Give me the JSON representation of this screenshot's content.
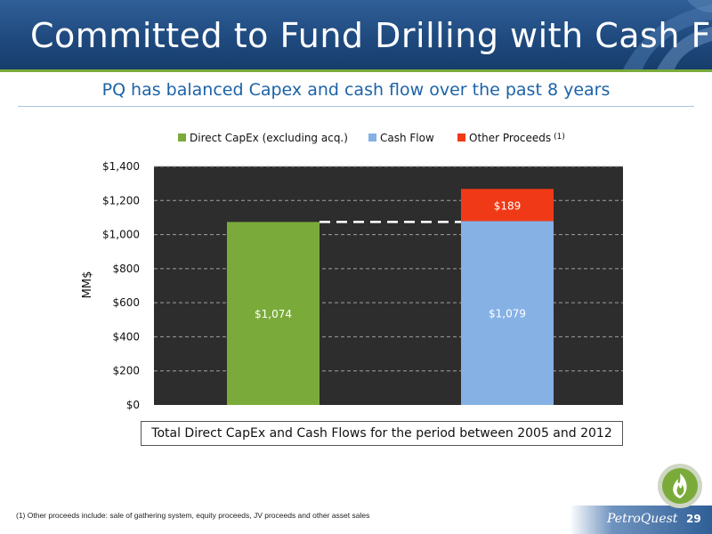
{
  "slide": {
    "title": "Committed to Fund Drilling with Cash Flow",
    "subtitle": "PQ has balanced Capex and cash flow over the past 8 years",
    "caption": "Total Direct CapEx and Cash Flows for the period between 2005 and 2012",
    "footnote": "(1) Other proceeds include: sale of gathering system, equity proceeds, JV proceeds and other asset sales",
    "brand": "PetroQuest",
    "page_number": "29"
  },
  "chart_data": {
    "type": "bar",
    "stacked": true,
    "ylabel": "MM$",
    "ylim": [
      0,
      1400
    ],
    "yticks": [
      "$0",
      "$200",
      "$400",
      "$600",
      "$800",
      "$1,000",
      "$1,200",
      "$1,400"
    ],
    "grid": true,
    "legend_position": "top",
    "legend": [
      {
        "name": "Direct CapEx (excluding acq.)",
        "color": "#7aab3a"
      },
      {
        "name": "Cash Flow",
        "color": "#85b1e4"
      },
      {
        "name": "Other Proceeds",
        "note": "(1)",
        "color": "#f03a17"
      }
    ],
    "bars": [
      {
        "segments": [
          {
            "series": "Direct CapEx (excluding acq.)",
            "value": 1074,
            "label": "$1,074",
            "color": "#7aab3a"
          }
        ]
      },
      {
        "segments": [
          {
            "series": "Cash Flow",
            "value": 1079,
            "label": "$1,079",
            "color": "#85b1e4"
          },
          {
            "series": "Other Proceeds",
            "value": 189,
            "label": "$189",
            "color": "#f03a17"
          }
        ]
      }
    ],
    "reference_line": {
      "value": 1074,
      "style": "dashed",
      "color": "#ffffff"
    },
    "plot_background": "#2d2d2d"
  }
}
